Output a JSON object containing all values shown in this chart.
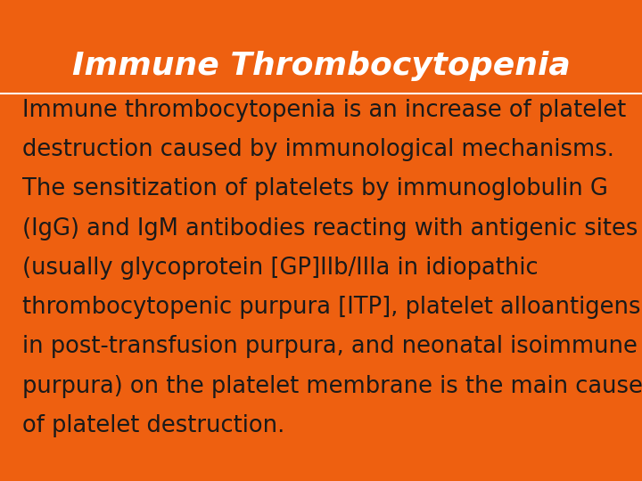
{
  "background_color": "#EE6010",
  "title": "Immune Thrombocytopenia",
  "title_color": "#FFFFFF",
  "title_fontsize": 26,
  "title_fontstyle": "italic",
  "title_fontweight": "bold",
  "body_color": "#1A1A1A",
  "body_fontsize": 18.5,
  "body_lines": [
    "Immune thrombocytopenia is an increase of platelet",
    "destruction caused by immunological mechanisms.",
    "The sensitization of platelets by immunoglobulin G",
    "(IgG) and IgM antibodies reacting with antigenic sites",
    "(usually glycoprotein [GP]IIb/IIIa in idiopathic",
    "thrombocytopenic purpura [ITP], platelet alloantigens",
    "in post-transfusion purpura, and neonatal isoimmune",
    "purpura) on the platelet membrane is the main cause",
    "of platelet destruction."
  ]
}
